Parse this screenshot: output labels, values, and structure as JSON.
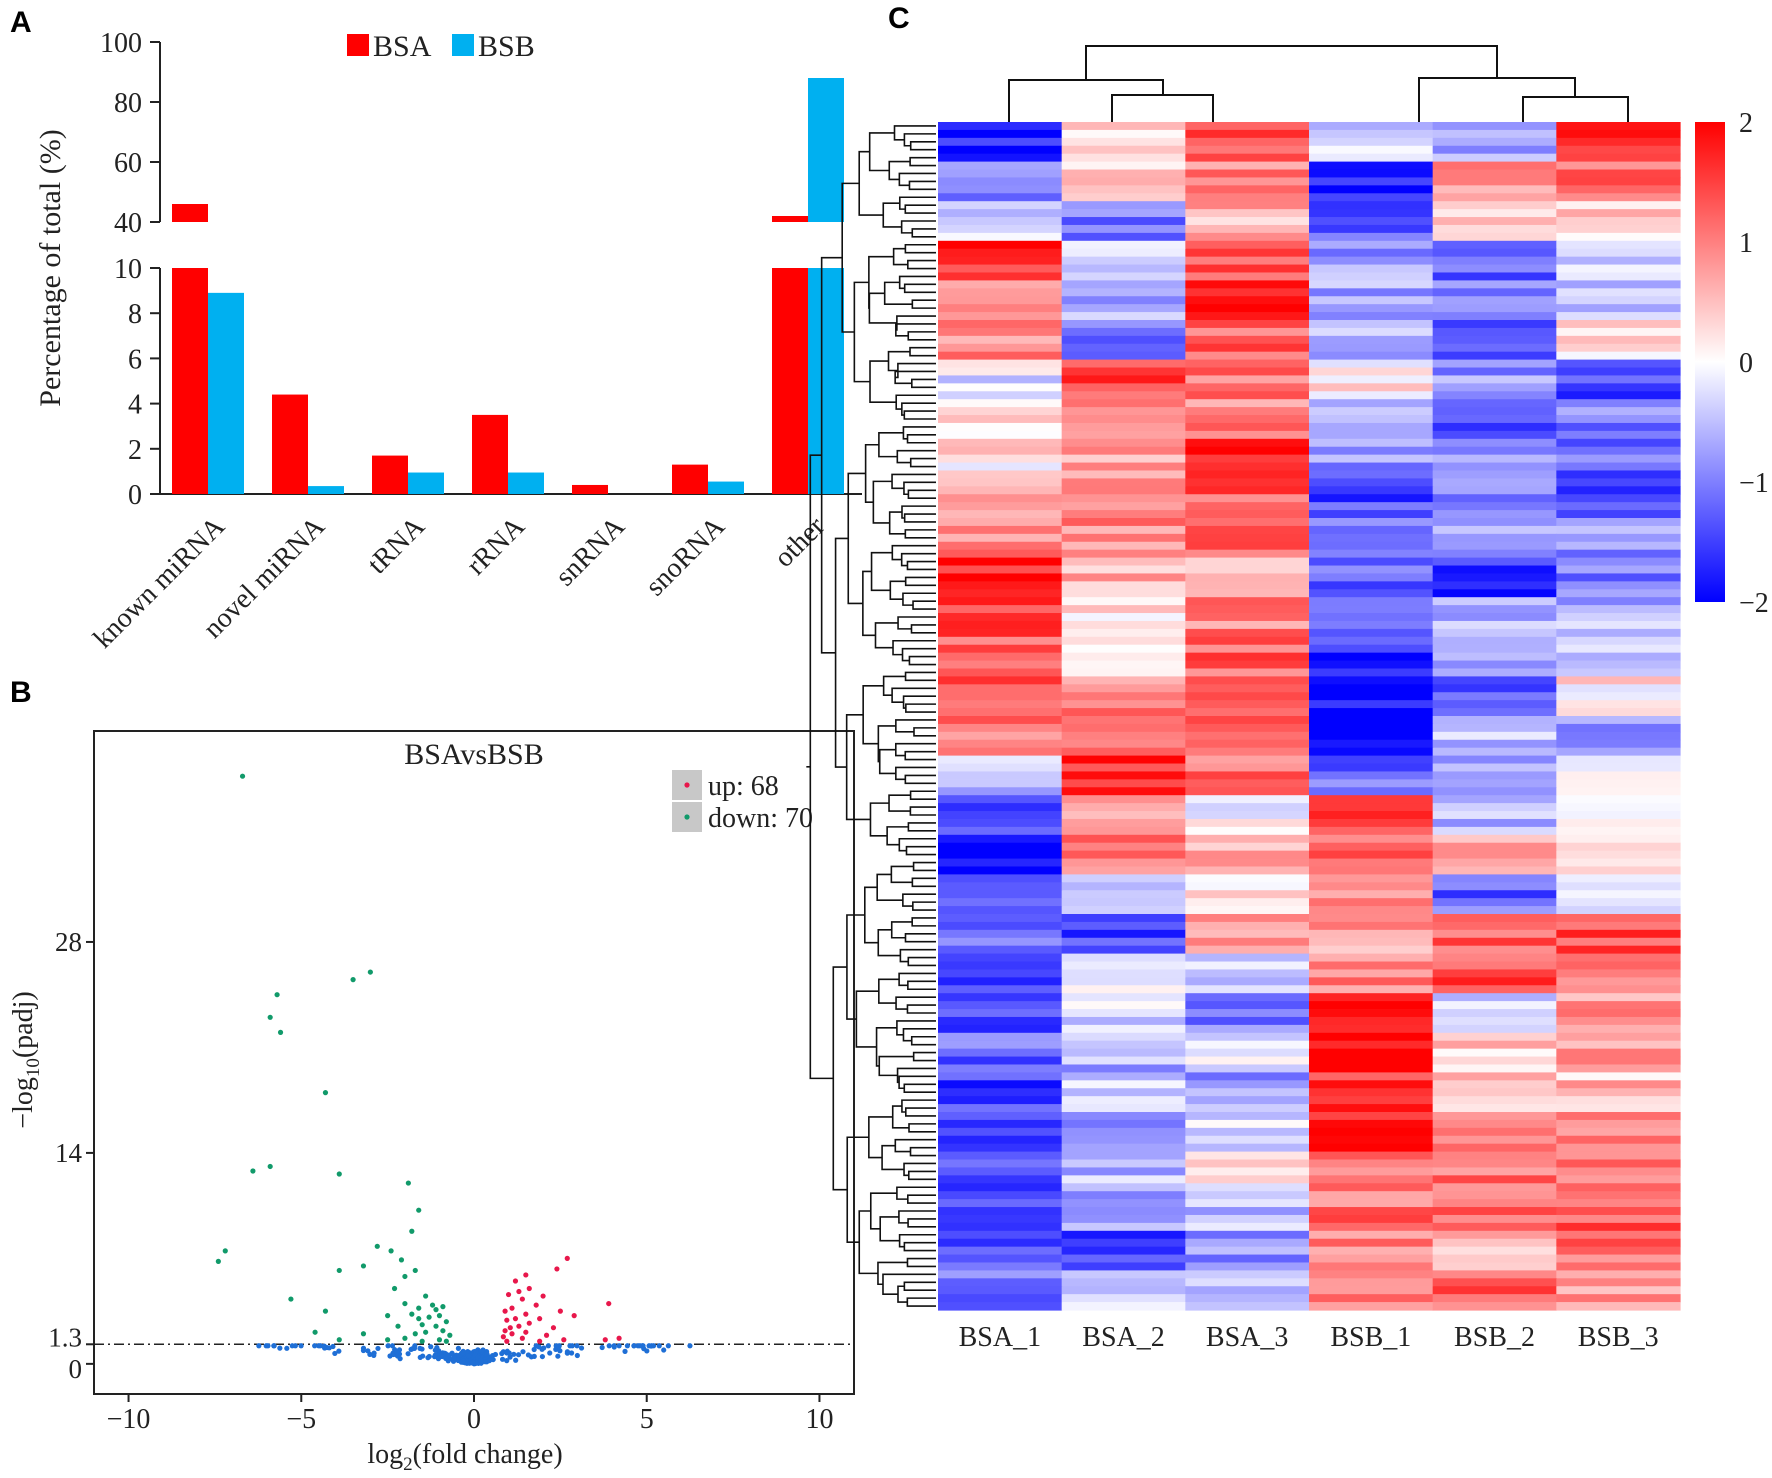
{
  "figure": {
    "panel_labels": [
      "A",
      "B",
      "C"
    ]
  },
  "chart_data": [
    {
      "panel": "A",
      "type": "bar",
      "title": "",
      "ylabel": "Percentage of total (%)",
      "xlabel": "",
      "broken_axis": true,
      "ylim_lower": [
        0,
        10
      ],
      "ylim_upper": [
        40,
        100
      ],
      "yticks_lower": [
        "0",
        "2",
        "4",
        "6",
        "8",
        "10"
      ],
      "yticks_upper": [
        "40",
        "60",
        "80",
        "100"
      ],
      "categories": [
        "known miRNA",
        "novel miRNA",
        "tRNA",
        "rRNA",
        "snRNA",
        "snoRNA",
        "other"
      ],
      "series": [
        {
          "name": "BSA",
          "color": "#ff0000",
          "values": [
            46,
            4.4,
            1.7,
            3.5,
            0.4,
            1.3,
            42
          ]
        },
        {
          "name": "BSB",
          "color": "#00b0f0",
          "values": [
            8.9,
            0.35,
            0.95,
            0.95,
            0.0,
            0.55,
            88
          ]
        }
      ],
      "legend": {
        "position": "top-center",
        "entries": [
          "BSA",
          "BSB"
        ]
      }
    },
    {
      "panel": "B",
      "type": "scatter",
      "title": "BSAvsBSB",
      "xlabel": "log2(fold change)",
      "ylabel": "−log10(padj)",
      "xlim": [
        -11,
        11
      ],
      "ylim": [
        -2,
        42
      ],
      "xticks": [
        "−10",
        "−5",
        "0",
        "5",
        "10"
      ],
      "yticks": [
        "0",
        "1.3",
        "14",
        "28"
      ],
      "threshold": 1.3,
      "legend": {
        "position": "top-right",
        "entries": [
          "up: 68",
          "down: 70"
        ]
      },
      "colors": {
        "up": "#e8174b",
        "down": "#119a6a",
        "ns": "#1f6fd6"
      },
      "down_points": [
        [
          -6.7,
          39.0
        ],
        [
          -3.0,
          26.0
        ],
        [
          -3.5,
          25.5
        ],
        [
          -5.7,
          24.5
        ],
        [
          -5.9,
          23.0
        ],
        [
          -5.6,
          22.0
        ],
        [
          -4.3,
          18.0
        ],
        [
          -6.4,
          12.8
        ],
        [
          -5.9,
          13.1
        ],
        [
          -3.9,
          12.6
        ],
        [
          -1.9,
          12.0
        ],
        [
          -1.6,
          10.2
        ],
        [
          -7.2,
          7.5
        ],
        [
          -7.4,
          6.8
        ],
        [
          -2.8,
          7.8
        ],
        [
          -1.8,
          8.8
        ],
        [
          -3.9,
          6.2
        ],
        [
          -3.2,
          6.5
        ],
        [
          -2.4,
          7.5
        ],
        [
          -2.1,
          6.9
        ],
        [
          -2.0,
          5.8
        ],
        [
          -1.7,
          6.2
        ],
        [
          -2.3,
          5.0
        ],
        [
          -1.4,
          4.5
        ],
        [
          -2.0,
          4.0
        ],
        [
          -1.2,
          3.9
        ],
        [
          -1.6,
          3.7
        ],
        [
          -0.9,
          3.8
        ],
        [
          -2.5,
          3.2
        ],
        [
          -1.8,
          3.3
        ],
        [
          -1.3,
          3.1
        ],
        [
          -1.0,
          3.2
        ],
        [
          -0.8,
          2.8
        ],
        [
          -1.5,
          2.6
        ],
        [
          -2.2,
          2.5
        ],
        [
          -1.1,
          2.5
        ],
        [
          -0.9,
          2.2
        ],
        [
          -1.7,
          2.0
        ],
        [
          -1.4,
          2.1
        ],
        [
          -3.2,
          2.0
        ],
        [
          -4.6,
          2.1
        ],
        [
          -5.3,
          4.3
        ],
        [
          -4.3,
          3.5
        ],
        [
          -2.0,
          1.7
        ],
        [
          -1.0,
          1.6
        ],
        [
          -0.7,
          1.9
        ],
        [
          -2.5,
          1.6
        ],
        [
          -1.5,
          1.5
        ],
        [
          -0.8,
          1.5
        ],
        [
          -3.9,
          1.6
        ],
        [
          -1.1,
          3.6
        ],
        [
          -1.6,
          3.0
        ]
      ],
      "up_points": [
        [
          2.7,
          7.0
        ],
        [
          2.4,
          6.3
        ],
        [
          1.5,
          5.9
        ],
        [
          1.2,
          5.5
        ],
        [
          1.6,
          5.0
        ],
        [
          1.3,
          4.8
        ],
        [
          1.0,
          4.6
        ],
        [
          1.4,
          4.3
        ],
        [
          2.0,
          4.5
        ],
        [
          1.8,
          3.9
        ],
        [
          1.1,
          3.7
        ],
        [
          0.9,
          3.5
        ],
        [
          2.5,
          3.5
        ],
        [
          1.5,
          3.3
        ],
        [
          1.2,
          3.0
        ],
        [
          1.9,
          3.0
        ],
        [
          2.9,
          3.2
        ],
        [
          0.95,
          2.9
        ],
        [
          1.6,
          2.7
        ],
        [
          1.3,
          2.5
        ],
        [
          1.05,
          2.4
        ],
        [
          0.9,
          2.2
        ],
        [
          2.3,
          2.4
        ],
        [
          1.5,
          2.1
        ],
        [
          1.1,
          2.0
        ],
        [
          0.85,
          1.8
        ],
        [
          1.4,
          1.7
        ],
        [
          3.9,
          4.0
        ],
        [
          4.2,
          1.7
        ],
        [
          3.8,
          1.6
        ],
        [
          2.6,
          1.6
        ],
        [
          1.9,
          1.5
        ],
        [
          0.95,
          1.5
        ],
        [
          2.1,
          1.9
        ]
      ]
    },
    {
      "panel": "C",
      "type": "heatmap",
      "columns": [
        "BSA_1",
        "BSA_2",
        "BSA_3",
        "BSB_1",
        "BSB_2",
        "BSB_3"
      ],
      "colorbar": {
        "min": -2,
        "max": 2,
        "ticks": [
          "2",
          "1",
          "0",
          "−1",
          "−2"
        ],
        "low": "#0000ff",
        "mid": "#ffffff",
        "high": "#ff0000"
      },
      "row_blocks": [
        [
          -1.8,
          0.2,
          1.4,
          -0.3,
          -0.6,
          1.6
        ],
        [
          -1.0,
          0.5,
          1.0,
          -1.8,
          0.8,
          1.2
        ],
        [
          -0.5,
          -1.0,
          0.6,
          -1.2,
          0.2,
          0.4
        ],
        [
          1.7,
          -0.2,
          1.2,
          -0.8,
          -1.2,
          -0.4
        ],
        [
          1.1,
          -0.6,
          1.8,
          -0.7,
          -0.9,
          -0.6
        ],
        [
          0.9,
          -1.0,
          1.2,
          -0.5,
          -1.3,
          0.3
        ],
        [
          -0.2,
          1.4,
          1.0,
          0.1,
          -0.8,
          -1.4
        ],
        [
          0.4,
          1.0,
          0.9,
          -0.6,
          -1.2,
          -1.0
        ],
        [
          0.2,
          0.8,
          1.8,
          -0.9,
          -1.0,
          -1.2
        ],
        [
          0.9,
          0.8,
          1.3,
          -1.4,
          -0.8,
          -1.3
        ],
        [
          1.0,
          1.0,
          1.1,
          -1.0,
          -0.6,
          -0.8
        ],
        [
          1.7,
          0.6,
          0.5,
          -1.2,
          -1.7,
          -1.0
        ],
        [
          1.4,
          0.3,
          1.0,
          -1.3,
          -0.5,
          -0.6
        ],
        [
          1.3,
          -0.1,
          1.2,
          -1.6,
          -0.9,
          -0.4
        ],
        [
          1.4,
          0.9,
          1.0,
          -1.9,
          -1.2,
          0.2
        ],
        [
          1.1,
          1.0,
          1.2,
          -1.9,
          -0.6,
          -0.7
        ],
        [
          -0.5,
          1.6,
          1.1,
          -1.2,
          -0.8,
          -0.2
        ],
        [
          -1.4,
          0.6,
          -0.1,
          1.4,
          -0.6,
          0.3
        ],
        [
          -1.9,
          1.0,
          0.5,
          1.2,
          0.6,
          0.4
        ],
        [
          -1.5,
          -0.7,
          0.2,
          1.0,
          -1.2,
          0.0
        ],
        [
          -1.1,
          -1.4,
          0.6,
          0.7,
          1.3,
          1.4
        ],
        [
          -1.3,
          0.1,
          -0.5,
          0.9,
          1.4,
          1.0
        ],
        [
          -1.4,
          -0.4,
          -1.0,
          1.9,
          -0.3,
          0.8
        ],
        [
          -1.2,
          -0.6,
          -0.3,
          2.0,
          0.4,
          0.9
        ],
        [
          -1.5,
          -0.4,
          -0.8,
          1.5,
          0.6,
          0.5
        ],
        [
          -1.6,
          -0.9,
          -0.4,
          1.7,
          0.9,
          0.9
        ],
        [
          -1.3,
          -0.5,
          0.1,
          1.2,
          1.1,
          1.0
        ],
        [
          -1.4,
          -0.8,
          -0.6,
          1.1,
          1.1,
          1.3
        ],
        [
          -1.3,
          -1.5,
          -0.9,
          1.0,
          0.7,
          1.2
        ],
        [
          -1.2,
          -0.5,
          -0.7,
          1.0,
          1.2,
          0.9
        ]
      ]
    }
  ]
}
